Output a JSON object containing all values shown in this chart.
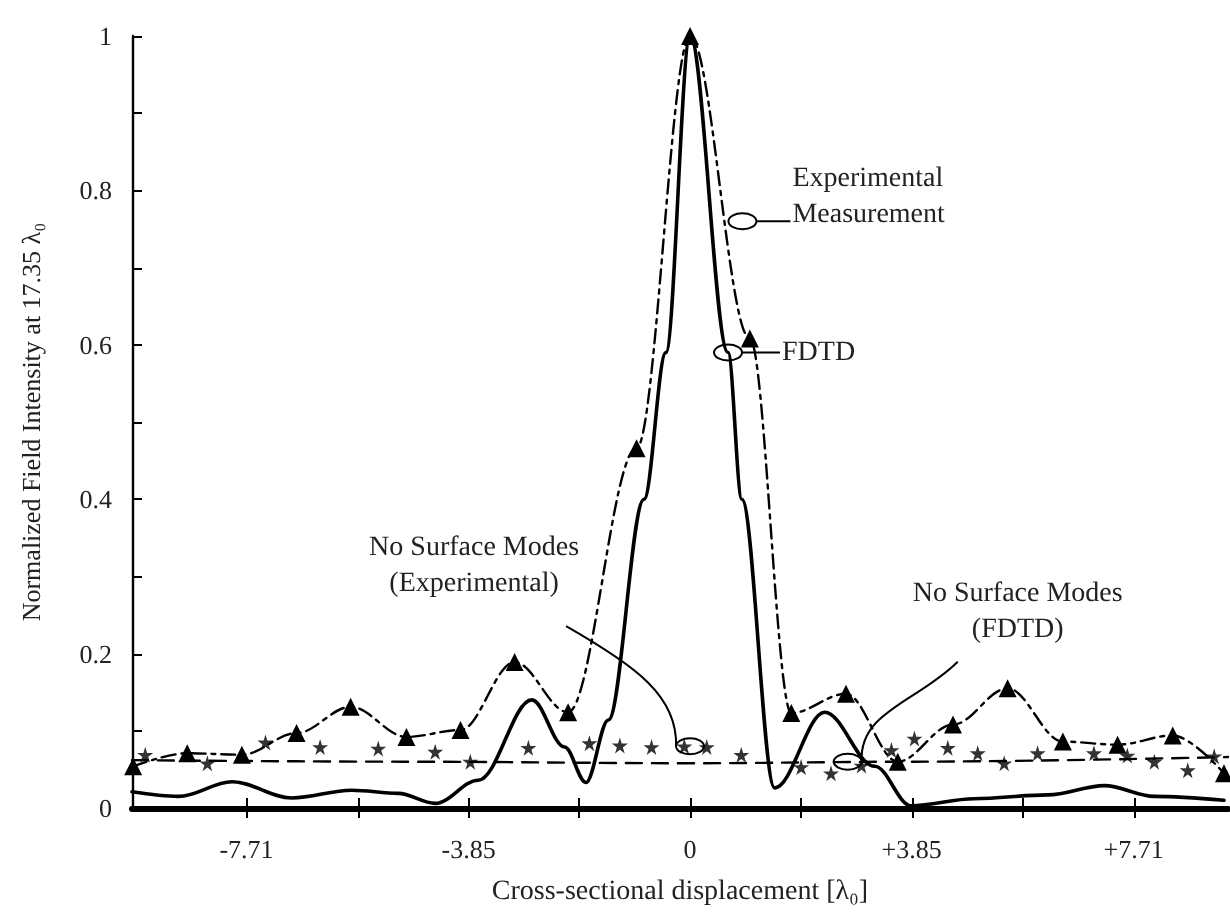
{
  "chart_data": {
    "type": "line",
    "xlabel": "Cross-sectional displacement [λ₀]",
    "ylabel": "Normalized Field Intensity at 17.35 λ₀",
    "xlim": [
      -9.7,
      9.35
    ],
    "xticks": [
      {
        "value": -7.71,
        "label": "-7.71"
      },
      {
        "value": -5.78,
        "label": null
      },
      {
        "value": -3.85,
        "label": "-3.85"
      },
      {
        "value": -1.93,
        "label": null
      },
      0,
      {
        "value": 1.93,
        "label": null
      },
      {
        "value": 3.85,
        "label": "+3.85"
      },
      {
        "value": 5.78,
        "label": null
      },
      {
        "value": 7.71,
        "label": "+7.71"
      }
    ],
    "ylim": [
      0,
      1
    ],
    "yticks": [
      0,
      {
        "value": 0.1,
        "label": null
      },
      0.2,
      {
        "value": 0.3,
        "label": null
      },
      0.4,
      {
        "value": 0.5,
        "label": null
      },
      0.6,
      {
        "value": 0.7,
        "label": null
      },
      0.8,
      {
        "value": 0.9,
        "label": null
      },
      1
    ],
    "grid": false,
    "series": [
      {
        "color": "#000000",
        "line_style": "solid",
        "marker": "none",
        "x": [
          -9.7,
          -8.89,
          -7.96,
          -6.92,
          -5.88,
          -5.07,
          -4.43,
          -3.68,
          -2.75,
          -2.18,
          -1.81,
          -1.42,
          -0.8,
          -0.42,
          0,
          0.66,
          0.9,
          1.47,
          2.34,
          3.21,
          3.84,
          4.94,
          6.22,
          7.2,
          8.07,
          9.28
        ],
        "values": [
          0.021,
          0.015,
          0.034,
          0.013,
          0.023,
          0.019,
          0.006,
          0.036,
          0.14,
          0.079,
          0.033,
          0.114,
          0.4,
          0.59,
          1,
          0.59,
          0.4,
          0.026,
          0.124,
          0.054,
          0.003,
          0.012,
          0.017,
          0.029,
          0.015,
          0.01
        ]
      },
      {
        "color": "#000000",
        "line_style": "dashed",
        "marker": "triangle",
        "x": [
          -9.68,
          -8.74,
          -7.79,
          -6.84,
          -5.9,
          -4.93,
          -3.99,
          -3.05,
          -2.12,
          -0.93,
          0,
          1.04,
          1.76,
          2.71,
          3.61,
          4.57,
          5.52,
          6.48,
          7.43,
          8.39,
          9.28
        ],
        "values": [
          0.054,
          0.071,
          0.069,
          0.097,
          0.131,
          0.092,
          0.101,
          0.189,
          0.124,
          0.466,
          1,
          0.608,
          0.123,
          0.148,
          0.06,
          0.108,
          0.155,
          0.086,
          0.082,
          0.094,
          0.045
        ]
      },
      {
        "type": "scatter",
        "color": "#000000",
        "marker": "star",
        "x": [
          -9.47,
          -8.39,
          -7.38,
          -6.43,
          -5.42,
          -4.43,
          -3.82,
          -2.81,
          -1.75,
          -1.22,
          -0.67,
          -0.1,
          0.29,
          0.89,
          1.93,
          2.45,
          2.98,
          3.5,
          3.9,
          4.48,
          5.0,
          5.46,
          6.04,
          7.02,
          7.6,
          8.07,
          8.65,
          9.11
        ],
        "values": [
          0.069,
          0.058,
          0.085,
          0.079,
          0.077,
          0.073,
          0.06,
          0.078,
          0.084,
          0.081,
          0.079,
          0.08,
          0.079,
          0.069,
          0.053,
          0.045,
          0.055,
          0.075,
          0.09,
          0.078,
          0.071,
          0.058,
          0.071,
          0.071,
          0.068,
          0.06,
          0.049,
          0.067
        ]
      },
      {
        "color": "#000000",
        "line_style": "dashed",
        "marker": "none",
        "x": [
          -9.7,
          -5,
          0,
          3.85,
          9.35
        ],
        "values": [
          0.062,
          0.06,
          0.058,
          0.06,
          0.066
        ]
      }
    ],
    "annotations": [
      {
        "text": "Experimental\nMeasurement",
        "x": 0.91,
        "y": 0.76
      },
      {
        "text": "FDTD",
        "x": 0.66,
        "y": 0.59
      },
      {
        "text": "No Surface Modes\n(Experimental)",
        "x": 0,
        "y": 0.08
      },
      {
        "text": "No Surface Modes\n(FDTD)",
        "x": 2.74,
        "y": 0.06
      }
    ]
  }
}
